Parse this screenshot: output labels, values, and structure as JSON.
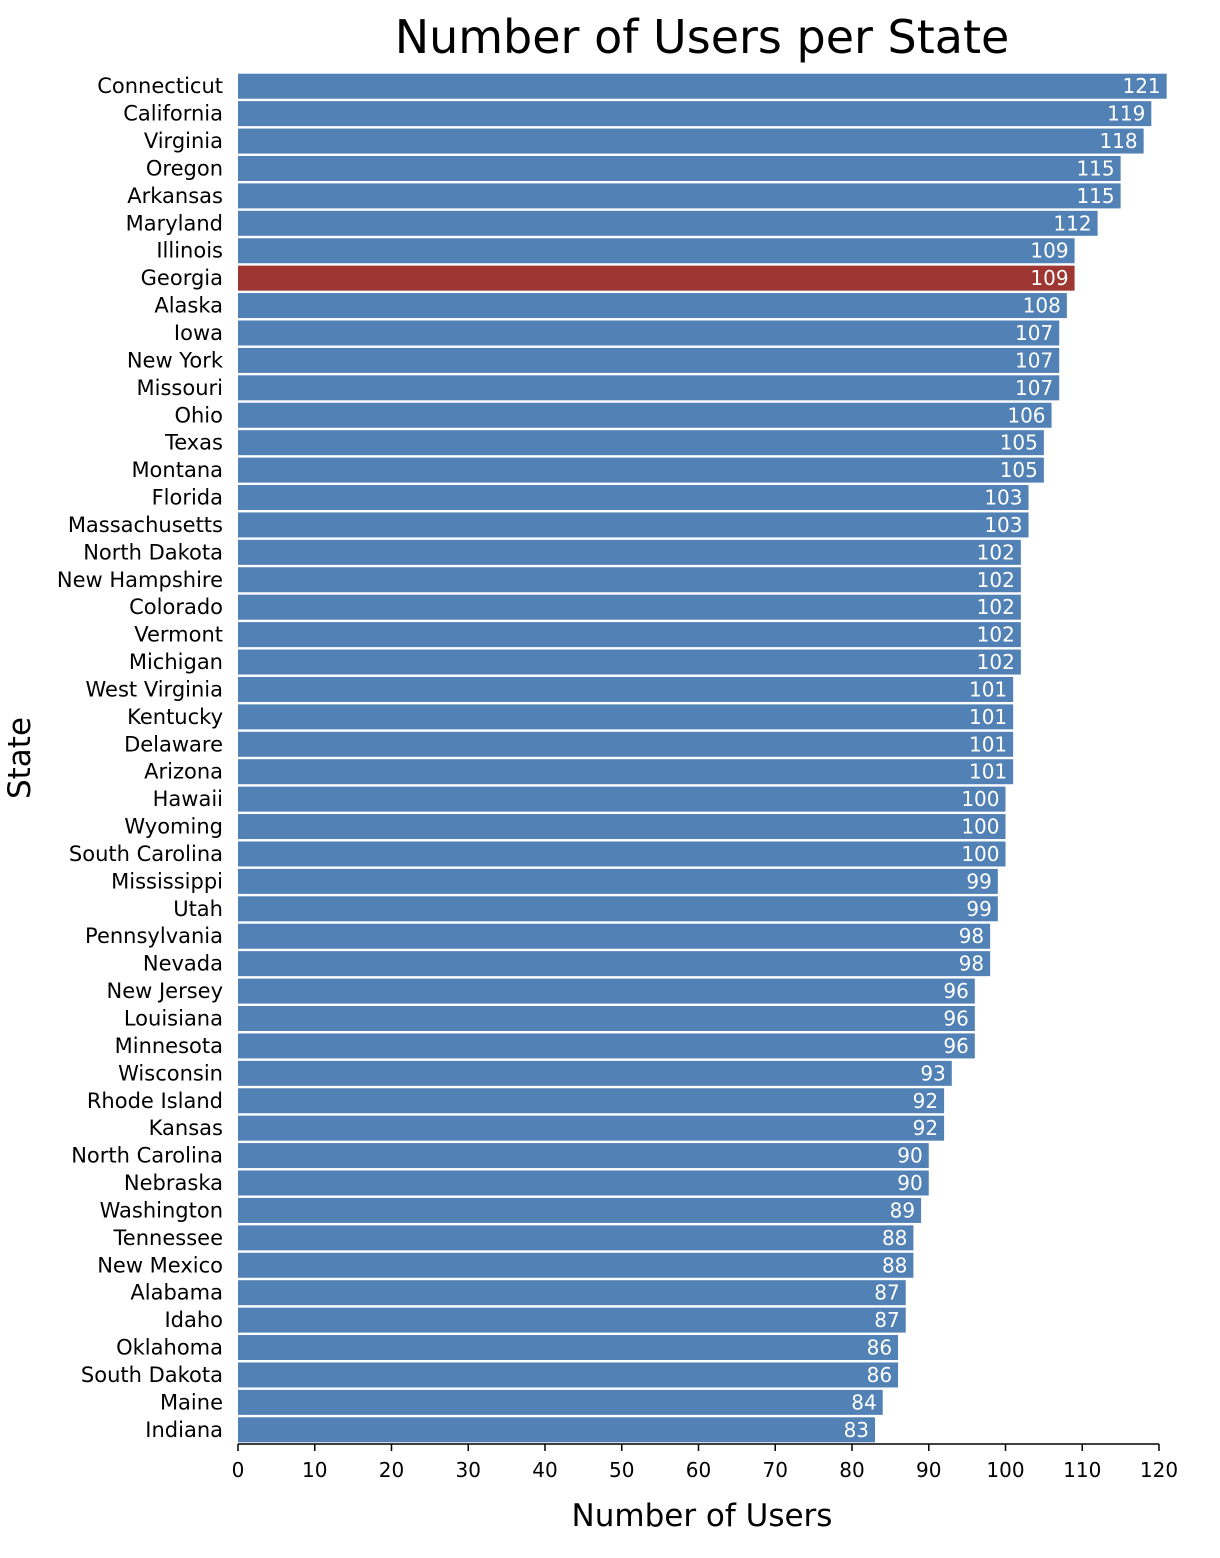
{
  "chart_data": {
    "type": "bar",
    "orientation": "horizontal",
    "title": "Number of Users per State",
    "xlabel": "Number of Users",
    "ylabel": "State",
    "xlim": [
      0,
      121
    ],
    "xticks": [
      0,
      10,
      20,
      30,
      40,
      50,
      60,
      70,
      80,
      90,
      100,
      110,
      120
    ],
    "grid": false,
    "colors": {
      "default": "#5181b5",
      "highlight": "#9e3632"
    },
    "highlight": "Georgia",
    "categories": [
      "Connecticut",
      "California",
      "Virginia",
      "Oregon",
      "Arkansas",
      "Maryland",
      "Illinois",
      "Georgia",
      "Alaska",
      "Iowa",
      "New York",
      "Missouri",
      "Ohio",
      "Texas",
      "Montana",
      "Florida",
      "Massachusetts",
      "North Dakota",
      "New Hampshire",
      "Colorado",
      "Vermont",
      "Michigan",
      "West Virginia",
      "Kentucky",
      "Delaware",
      "Arizona",
      "Hawaii",
      "Wyoming",
      "South Carolina",
      "Mississippi",
      "Utah",
      "Pennsylvania",
      "Nevada",
      "New Jersey",
      "Louisiana",
      "Minnesota",
      "Wisconsin",
      "Rhode Island",
      "Kansas",
      "North Carolina",
      "Nebraska",
      "Washington",
      "Tennessee",
      "New Mexico",
      "Alabama",
      "Idaho",
      "Oklahoma",
      "South Dakota",
      "Maine",
      "Indiana"
    ],
    "values": [
      121,
      119,
      118,
      115,
      115,
      112,
      109,
      109,
      108,
      107,
      107,
      107,
      106,
      105,
      105,
      103,
      103,
      102,
      102,
      102,
      102,
      102,
      101,
      101,
      101,
      101,
      100,
      100,
      100,
      99,
      99,
      98,
      98,
      96,
      96,
      96,
      93,
      92,
      92,
      90,
      90,
      89,
      88,
      88,
      87,
      87,
      86,
      86,
      84,
      83
    ]
  }
}
